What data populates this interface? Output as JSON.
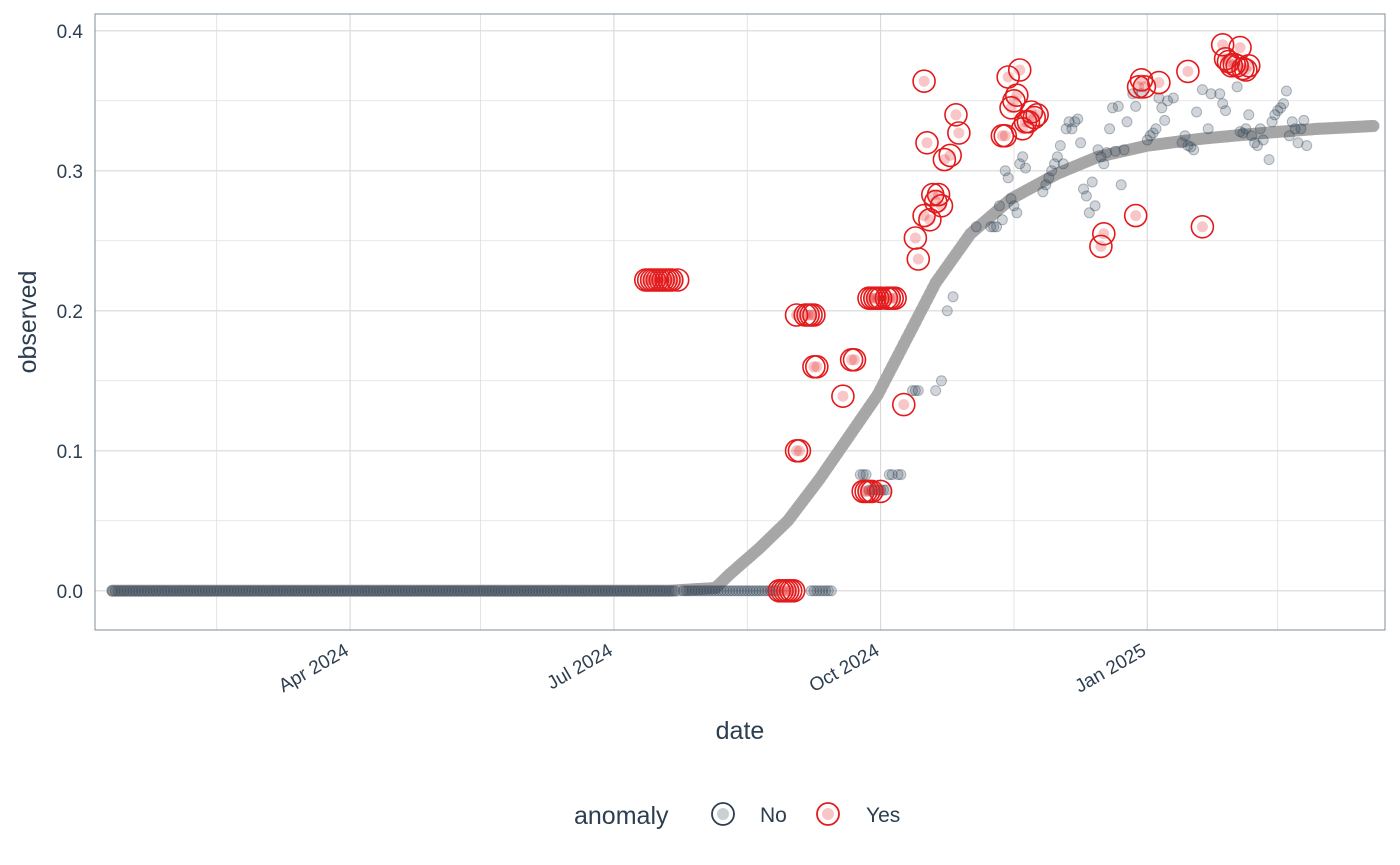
{
  "chart_data": {
    "type": "scatter",
    "xlabel": "date",
    "ylabel": "observed",
    "x_type": "date",
    "xlim": [
      "2024-01-04",
      "2025-03-24"
    ],
    "ylim": [
      -0.028,
      0.412
    ],
    "x_ticks": [
      {
        "date": "2024-04-01",
        "label": "Apr 2024"
      },
      {
        "date": "2024-07-01",
        "label": "Jul 2024"
      },
      {
        "date": "2024-10-01",
        "label": "Oct 2024"
      },
      {
        "date": "2025-01-01",
        "label": "Jan 2025"
      }
    ],
    "y_ticks": [
      {
        "value": 0.0,
        "label": "0.0"
      },
      {
        "value": 0.1,
        "label": "0.1"
      },
      {
        "value": 0.2,
        "label": "0.2"
      },
      {
        "value": 0.3,
        "label": "0.3"
      },
      {
        "value": 0.4,
        "label": "0.4"
      }
    ],
    "grid": true,
    "legend": {
      "title": "anomaly",
      "position": "bottom",
      "entries": [
        {
          "label": "No",
          "color": "#2c3e50"
        },
        {
          "label": "Yes",
          "color": "#e31a1c"
        }
      ]
    },
    "colors": {
      "normal": "#2c3e50",
      "anomaly": "#e31a1c",
      "trend": "#a6a6a6",
      "grid": "#d9d9d9",
      "panel_border": "#7f8c9a"
    },
    "trend": {
      "name": "trend",
      "points": [
        [
          "2024-01-10",
          0.0
        ],
        [
          "2024-02-01",
          0.0
        ],
        [
          "2024-03-01",
          0.0
        ],
        [
          "2024-04-01",
          0.0
        ],
        [
          "2024-05-01",
          0.0
        ],
        [
          "2024-06-01",
          0.0
        ],
        [
          "2024-07-01",
          0.0
        ],
        [
          "2024-07-20",
          0.0
        ],
        [
          "2024-08-05",
          0.002
        ],
        [
          "2024-08-10",
          0.012
        ],
        [
          "2024-08-20",
          0.03
        ],
        [
          "2024-08-30",
          0.05
        ],
        [
          "2024-09-10",
          0.08
        ],
        [
          "2024-09-20",
          0.11
        ],
        [
          "2024-09-30",
          0.14
        ],
        [
          "2024-10-10",
          0.18
        ],
        [
          "2024-10-20",
          0.22
        ],
        [
          "2024-11-01",
          0.255
        ],
        [
          "2024-11-15",
          0.28
        ],
        [
          "2024-12-01",
          0.298
        ],
        [
          "2024-12-15",
          0.31
        ],
        [
          "2025-01-01",
          0.318
        ],
        [
          "2025-01-20",
          0.323
        ],
        [
          "2025-02-10",
          0.327
        ],
        [
          "2025-03-01",
          0.33
        ],
        [
          "2025-03-20",
          0.332
        ]
      ]
    },
    "normal_segments": [
      {
        "start": "2024-01-10",
        "end": "2024-07-22",
        "value": 0.0
      },
      {
        "start": "2024-07-25",
        "end": "2024-08-26",
        "value": 0.0
      },
      {
        "start": "2024-09-07",
        "end": "2024-09-14",
        "value": 0.0
      }
    ],
    "normal_points": [
      [
        "2024-09-24",
        0.083
      ],
      [
        "2024-09-25",
        0.083
      ],
      [
        "2024-09-26",
        0.083
      ],
      [
        "2024-09-27",
        0.072
      ],
      [
        "2024-09-28",
        0.072
      ],
      [
        "2024-09-29",
        0.072
      ],
      [
        "2024-09-30",
        0.072
      ],
      [
        "2024-10-01",
        0.072
      ],
      [
        "2024-10-02",
        0.072
      ],
      [
        "2024-10-03",
        0.072
      ],
      [
        "2024-10-04",
        0.083
      ],
      [
        "2024-10-05",
        0.083
      ],
      [
        "2024-10-07",
        0.083
      ],
      [
        "2024-10-08",
        0.083
      ],
      [
        "2024-10-12",
        0.143
      ],
      [
        "2024-10-13",
        0.143
      ],
      [
        "2024-10-14",
        0.143
      ],
      [
        "2024-10-20",
        0.143
      ],
      [
        "2024-10-22",
        0.15
      ],
      [
        "2024-10-24",
        0.2
      ],
      [
        "2024-10-26",
        0.21
      ],
      [
        "2024-11-03",
        0.26
      ],
      [
        "2024-11-08",
        0.26
      ],
      [
        "2024-11-09",
        0.26
      ],
      [
        "2024-11-10",
        0.26
      ],
      [
        "2024-11-11",
        0.275
      ],
      [
        "2024-11-12",
        0.265
      ],
      [
        "2024-11-13",
        0.3
      ],
      [
        "2024-11-14",
        0.295
      ],
      [
        "2024-11-15",
        0.28
      ],
      [
        "2024-11-16",
        0.275
      ],
      [
        "2024-11-17",
        0.27
      ],
      [
        "2024-11-18",
        0.305
      ],
      [
        "2024-11-19",
        0.31
      ],
      [
        "2024-11-20",
        0.302
      ],
      [
        "2024-11-26",
        0.285
      ],
      [
        "2024-11-27",
        0.29
      ],
      [
        "2024-11-28",
        0.295
      ],
      [
        "2024-11-29",
        0.3
      ],
      [
        "2024-11-30",
        0.305
      ],
      [
        "2024-12-01",
        0.31
      ],
      [
        "2024-12-02",
        0.318
      ],
      [
        "2024-12-03",
        0.305
      ],
      [
        "2024-12-04",
        0.33
      ],
      [
        "2024-12-05",
        0.335
      ],
      [
        "2024-12-06",
        0.33
      ],
      [
        "2024-12-07",
        0.335
      ],
      [
        "2024-12-08",
        0.337
      ],
      [
        "2024-12-09",
        0.32
      ],
      [
        "2024-12-10",
        0.287
      ],
      [
        "2024-12-11",
        0.282
      ],
      [
        "2024-12-12",
        0.27
      ],
      [
        "2024-12-13",
        0.292
      ],
      [
        "2024-12-14",
        0.275
      ],
      [
        "2024-12-15",
        0.315
      ],
      [
        "2024-12-16",
        0.31
      ],
      [
        "2024-12-17",
        0.305
      ],
      [
        "2024-12-18",
        0.313
      ],
      [
        "2024-12-19",
        0.33
      ],
      [
        "2024-12-20",
        0.345
      ],
      [
        "2024-12-21",
        0.314
      ],
      [
        "2024-12-22",
        0.346
      ],
      [
        "2024-12-23",
        0.29
      ],
      [
        "2024-12-24",
        0.315
      ],
      [
        "2024-12-25",
        0.335
      ],
      [
        "2024-12-27",
        0.355
      ],
      [
        "2024-12-28",
        0.346
      ],
      [
        "2024-12-30",
        0.355
      ],
      [
        "2025-01-01",
        0.322
      ],
      [
        "2025-01-02",
        0.325
      ],
      [
        "2025-01-03",
        0.327
      ],
      [
        "2025-01-04",
        0.33
      ],
      [
        "2025-01-05",
        0.352
      ],
      [
        "2025-01-06",
        0.345
      ],
      [
        "2025-01-07",
        0.336
      ],
      [
        "2025-01-08",
        0.35
      ],
      [
        "2025-01-10",
        0.352
      ],
      [
        "2025-01-13",
        0.32
      ],
      [
        "2025-01-14",
        0.325
      ],
      [
        "2025-01-15",
        0.318
      ],
      [
        "2025-01-16",
        0.317
      ],
      [
        "2025-01-17",
        0.315
      ],
      [
        "2025-01-18",
        0.342
      ],
      [
        "2025-01-20",
        0.358
      ],
      [
        "2025-01-22",
        0.33
      ],
      [
        "2025-01-23",
        0.355
      ],
      [
        "2025-01-26",
        0.355
      ],
      [
        "2025-01-27",
        0.348
      ],
      [
        "2025-01-28",
        0.343
      ],
      [
        "2025-02-01",
        0.36
      ],
      [
        "2025-02-02",
        0.328
      ],
      [
        "2025-02-03",
        0.327
      ],
      [
        "2025-02-04",
        0.33
      ],
      [
        "2025-02-05",
        0.34
      ],
      [
        "2025-02-06",
        0.325
      ],
      [
        "2025-02-07",
        0.32
      ],
      [
        "2025-02-08",
        0.318
      ],
      [
        "2025-02-09",
        0.33
      ],
      [
        "2025-02-10",
        0.322
      ],
      [
        "2025-02-12",
        0.308
      ],
      [
        "2025-02-13",
        0.335
      ],
      [
        "2025-02-14",
        0.34
      ],
      [
        "2025-02-15",
        0.343
      ],
      [
        "2025-02-16",
        0.345
      ],
      [
        "2025-02-17",
        0.348
      ],
      [
        "2025-02-18",
        0.357
      ],
      [
        "2025-02-19",
        0.325
      ],
      [
        "2025-02-20",
        0.335
      ],
      [
        "2025-02-21",
        0.33
      ],
      [
        "2025-02-22",
        0.32
      ],
      [
        "2025-02-23",
        0.33
      ],
      [
        "2025-02-24",
        0.336
      ],
      [
        "2025-02-25",
        0.318
      ]
    ],
    "anomaly_points": [
      [
        "2024-07-12",
        0.222
      ],
      [
        "2024-07-13",
        0.222
      ],
      [
        "2024-07-14",
        0.222
      ],
      [
        "2024-07-15",
        0.222
      ],
      [
        "2024-07-16",
        0.222
      ],
      [
        "2024-07-17",
        0.222
      ],
      [
        "2024-07-18",
        0.222
      ],
      [
        "2024-07-19",
        0.222
      ],
      [
        "2024-07-20",
        0.222
      ],
      [
        "2024-07-21",
        0.222
      ],
      [
        "2024-07-23",
        0.222
      ],
      [
        "2024-08-27",
        0.0
      ],
      [
        "2024-08-28",
        0.0
      ],
      [
        "2024-08-29",
        0.0
      ],
      [
        "2024-08-30",
        0.0
      ],
      [
        "2024-08-31",
        0.0
      ],
      [
        "2024-09-01",
        0.0
      ],
      [
        "2024-09-02",
        0.1
      ],
      [
        "2024-09-03",
        0.1
      ],
      [
        "2024-09-02",
        0.197
      ],
      [
        "2024-09-05",
        0.197
      ],
      [
        "2024-09-06",
        0.197
      ],
      [
        "2024-09-07",
        0.197
      ],
      [
        "2024-09-08",
        0.197
      ],
      [
        "2024-09-08",
        0.16
      ],
      [
        "2024-09-09",
        0.16
      ],
      [
        "2024-09-18",
        0.139
      ],
      [
        "2024-09-21",
        0.165
      ],
      [
        "2024-09-22",
        0.165
      ],
      [
        "2024-09-25",
        0.071
      ],
      [
        "2024-09-26",
        0.071
      ],
      [
        "2024-09-27",
        0.071
      ],
      [
        "2024-09-28",
        0.071
      ],
      [
        "2024-10-01",
        0.071
      ],
      [
        "2024-09-27",
        0.209
      ],
      [
        "2024-09-28",
        0.209
      ],
      [
        "2024-09-29",
        0.209
      ],
      [
        "2024-09-30",
        0.209
      ],
      [
        "2024-10-01",
        0.209
      ],
      [
        "2024-10-03",
        0.209
      ],
      [
        "2024-10-04",
        0.209
      ],
      [
        "2024-10-05",
        0.209
      ],
      [
        "2024-10-06",
        0.209
      ],
      [
        "2024-10-09",
        0.133
      ],
      [
        "2024-10-13",
        0.252
      ],
      [
        "2024-10-14",
        0.237
      ],
      [
        "2024-10-16",
        0.364
      ],
      [
        "2024-10-17",
        0.32
      ],
      [
        "2024-10-16",
        0.268
      ],
      [
        "2024-10-18",
        0.265
      ],
      [
        "2024-10-19",
        0.283
      ],
      [
        "2024-10-20",
        0.278
      ],
      [
        "2024-10-21",
        0.283
      ],
      [
        "2024-10-22",
        0.275
      ],
      [
        "2024-10-23",
        0.308
      ],
      [
        "2024-10-25",
        0.311
      ],
      [
        "2024-10-27",
        0.34
      ],
      [
        "2024-10-28",
        0.327
      ],
      [
        "2024-11-12",
        0.325
      ],
      [
        "2024-11-13",
        0.325
      ],
      [
        "2024-11-14",
        0.367
      ],
      [
        "2024-11-15",
        0.345
      ],
      [
        "2024-11-16",
        0.35
      ],
      [
        "2024-11-17",
        0.354
      ],
      [
        "2024-11-18",
        0.372
      ],
      [
        "2024-11-19",
        0.33
      ],
      [
        "2024-11-20",
        0.335
      ],
      [
        "2024-11-21",
        0.335
      ],
      [
        "2024-11-22",
        0.342
      ],
      [
        "2024-11-23",
        0.338
      ],
      [
        "2024-11-24",
        0.34
      ],
      [
        "2024-12-16",
        0.246
      ],
      [
        "2024-12-17",
        0.255
      ],
      [
        "2024-12-28",
        0.268
      ],
      [
        "2024-12-29",
        0.36
      ],
      [
        "2024-12-30",
        0.365
      ],
      [
        "2024-12-31",
        0.36
      ],
      [
        "2025-01-05",
        0.363
      ],
      [
        "2025-01-15",
        0.371
      ],
      [
        "2025-01-20",
        0.26
      ],
      [
        "2025-01-27",
        0.39
      ],
      [
        "2025-01-28",
        0.38
      ],
      [
        "2025-01-29",
        0.378
      ],
      [
        "2025-01-30",
        0.375
      ],
      [
        "2025-01-31",
        0.376
      ],
      [
        "2025-02-01",
        0.375
      ],
      [
        "2025-02-02",
        0.388
      ],
      [
        "2025-02-03",
        0.373
      ],
      [
        "2025-02-04",
        0.372
      ],
      [
        "2025-02-05",
        0.375
      ]
    ]
  }
}
